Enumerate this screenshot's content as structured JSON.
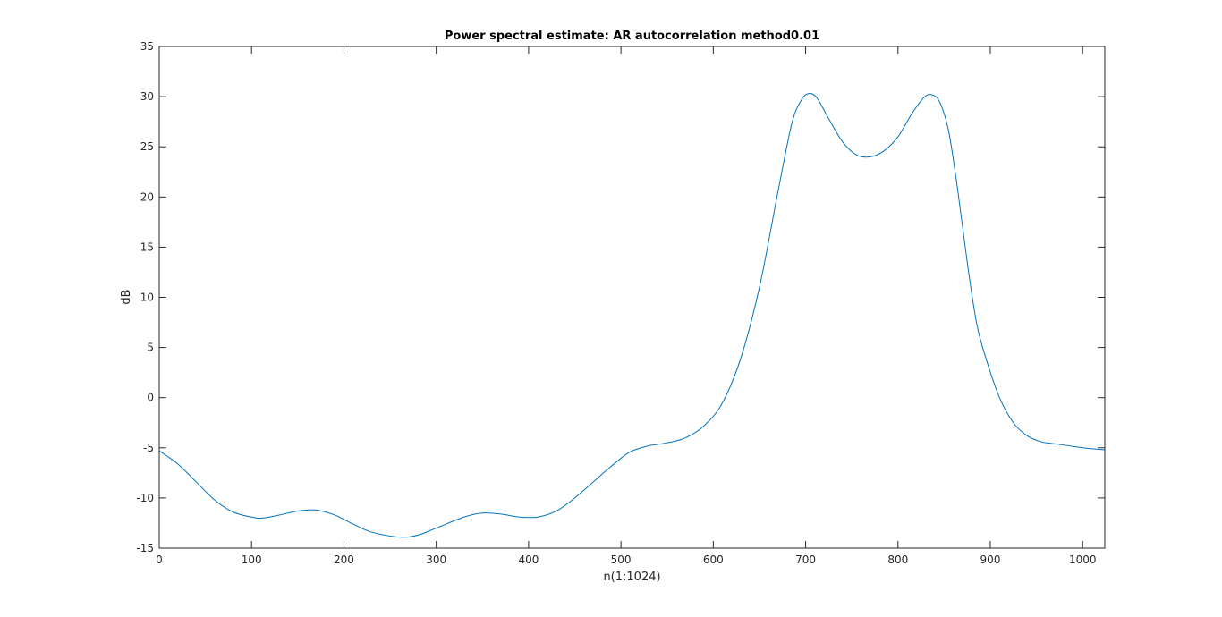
{
  "chart_data": {
    "type": "line",
    "title": "Power spectral estimate: AR autocorrelation method0.01",
    "xlabel": "n(1:1024)",
    "ylabel": "dB",
    "xlim": [
      0,
      1024
    ],
    "ylim": [
      -15,
      35
    ],
    "xticks": [
      0,
      100,
      200,
      300,
      400,
      500,
      600,
      700,
      800,
      900,
      1000
    ],
    "yticks": [
      -15,
      -10,
      -5,
      0,
      5,
      10,
      15,
      20,
      25,
      30,
      35
    ],
    "grid": false,
    "line_color": "#0072BD",
    "series": [
      {
        "x": [
          0,
          20,
          40,
          60,
          80,
          100,
          112,
          130,
          150,
          170,
          190,
          210,
          230,
          260,
          280,
          300,
          330,
          350,
          370,
          390,
          410,
          430,
          450,
          470,
          490,
          510,
          530,
          550,
          570,
          590,
          610,
          630,
          650,
          670,
          685,
          695,
          703,
          712,
          725,
          740,
          755,
          770,
          785,
          800,
          815,
          828,
          836,
          845,
          855,
          865,
          875,
          885,
          895,
          910,
          925,
          940,
          955,
          970,
          985,
          1000,
          1010,
          1024
        ],
        "y": [
          -5.3,
          -6.6,
          -8.4,
          -10.2,
          -11.4,
          -11.9,
          -12.0,
          -11.7,
          -11.3,
          -11.2,
          -11.7,
          -12.6,
          -13.4,
          -13.9,
          -13.7,
          -13.0,
          -11.9,
          -11.5,
          -11.6,
          -11.9,
          -11.9,
          -11.3,
          -10.0,
          -8.4,
          -6.8,
          -5.4,
          -4.8,
          -4.5,
          -4.0,
          -2.8,
          -0.5,
          4.0,
          11.0,
          20.5,
          27.3,
          29.6,
          30.3,
          29.9,
          27.8,
          25.5,
          24.2,
          24.0,
          24.6,
          26.0,
          28.3,
          29.9,
          30.2,
          29.5,
          26.5,
          20.5,
          13.5,
          7.5,
          4.0,
          0.0,
          -2.5,
          -3.8,
          -4.4,
          -4.6,
          -4.8,
          -5.0,
          -5.1,
          -5.2
        ]
      }
    ]
  }
}
